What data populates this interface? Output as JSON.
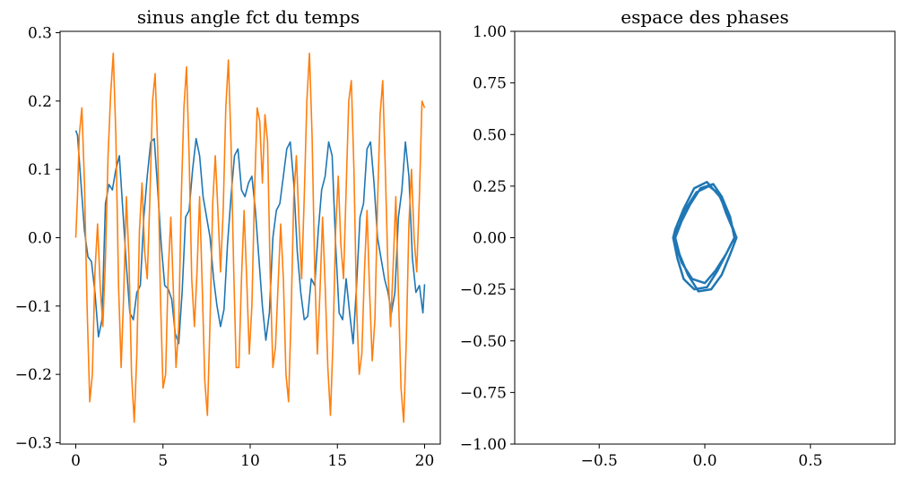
{
  "chart_data": [
    {
      "type": "line",
      "title": "sinus angle fct du temps",
      "xlabel": "",
      "ylabel": "",
      "xlim": [
        -0.9,
        20.9
      ],
      "ylim": [
        -0.302,
        0.302
      ],
      "x_ticks": [
        0,
        5,
        10,
        15,
        20
      ],
      "x_tick_labels": [
        "0",
        "5",
        "10",
        "15",
        "20"
      ],
      "y_ticks": [
        -0.3,
        -0.2,
        -0.1,
        0.0,
        0.1,
        0.2,
        0.3
      ],
      "y_tick_labels": [
        "−0.3",
        "−0.2",
        "−0.1",
        "0.0",
        "0.1",
        "0.2",
        "0.3"
      ],
      "grid": false,
      "legend": "none",
      "series": [
        {
          "color": "#1f77b4",
          "x": [
            0,
            0.1,
            0.3,
            0.5,
            0.7,
            0.9,
            1.1,
            1.3,
            1.5,
            1.7,
            1.9,
            2.1,
            2.3,
            2.5,
            2.7,
            2.9,
            3.1,
            3.3,
            3.5,
            3.7,
            3.9,
            4.1,
            4.3,
            4.5,
            4.7,
            4.9,
            5.1,
            5.3,
            5.5,
            5.7,
            5.9,
            6.1,
            6.3,
            6.5,
            6.7,
            6.9,
            7.1,
            7.3,
            7.5,
            7.7,
            7.9,
            8.1,
            8.3,
            8.5,
            8.7,
            8.9,
            9.1,
            9.3,
            9.5,
            9.7,
            9.9,
            10.1,
            10.3,
            10.5,
            10.7,
            10.9,
            11.1,
            11.3,
            11.5,
            11.7,
            11.9,
            12.1,
            12.3,
            12.5,
            12.7,
            12.9,
            13.1,
            13.3,
            13.5,
            13.7,
            13.9,
            14.1,
            14.3,
            14.5,
            14.7,
            14.9,
            15.1,
            15.3,
            15.5,
            15.7,
            15.9,
            16.1,
            16.3,
            16.5,
            16.7,
            16.9,
            17.1,
            17.3,
            17.5,
            17.7,
            17.9,
            18.1,
            18.3,
            18.5,
            18.7,
            18.9,
            19.1,
            19.3,
            19.5,
            19.7,
            19.9,
            20.0
          ],
          "y": [
            0.157,
            0.15,
            0.08,
            0.01,
            -0.028,
            -0.035,
            -0.08,
            -0.145,
            -0.12,
            0.05,
            0.078,
            0.07,
            0.1,
            0.12,
            0.04,
            -0.04,
            -0.11,
            -0.12,
            -0.08,
            -0.07,
            0.03,
            0.09,
            0.14,
            0.145,
            0.07,
            -0.01,
            -0.07,
            -0.075,
            -0.09,
            -0.14,
            -0.155,
            -0.08,
            0.03,
            0.04,
            0.1,
            0.145,
            0.12,
            0.06,
            0.03,
            0.0,
            -0.06,
            -0.1,
            -0.13,
            -0.105,
            -0.01,
            0.06,
            0.12,
            0.13,
            0.07,
            0.06,
            0.08,
            0.09,
            0.04,
            -0.03,
            -0.1,
            -0.15,
            -0.11,
            0.0,
            0.04,
            0.05,
            0.09,
            0.13,
            0.14,
            0.08,
            -0.02,
            -0.08,
            -0.12,
            -0.115,
            -0.06,
            -0.07,
            0.01,
            0.07,
            0.09,
            0.14,
            0.12,
            -0.01,
            -0.11,
            -0.12,
            -0.06,
            -0.11,
            -0.155,
            -0.07,
            0.03,
            0.05,
            0.13,
            0.14,
            0.08,
            0.0,
            -0.03,
            -0.06,
            -0.08,
            -0.11,
            -0.08,
            0.03,
            0.07,
            0.14,
            0.09,
            -0.03,
            -0.08,
            -0.07,
            -0.11,
            -0.068
          ]
        },
        {
          "color": "#ff7f0e",
          "x": [
            0,
            0.1,
            0.2,
            0.35,
            0.5,
            0.65,
            0.8,
            0.95,
            1.1,
            1.25,
            1.4,
            1.55,
            1.7,
            1.85,
            2.0,
            2.15,
            2.3,
            2.45,
            2.6,
            2.75,
            2.9,
            3.05,
            3.2,
            3.35,
            3.5,
            3.65,
            3.8,
            3.95,
            4.1,
            4.25,
            4.4,
            4.55,
            4.7,
            4.85,
            5.0,
            5.15,
            5.3,
            5.45,
            5.6,
            5.75,
            5.9,
            6.05,
            6.2,
            6.35,
            6.5,
            6.65,
            6.8,
            6.95,
            7.1,
            7.25,
            7.4,
            7.55,
            7.7,
            7.85,
            8.0,
            8.15,
            8.3,
            8.45,
            8.6,
            8.75,
            8.9,
            9.05,
            9.2,
            9.35,
            9.5,
            9.65,
            9.8,
            9.95,
            10.1,
            10.25,
            10.4,
            10.55,
            10.7,
            10.85,
            11.0,
            11.15,
            11.3,
            11.45,
            11.6,
            11.75,
            11.9,
            12.05,
            12.2,
            12.35,
            12.5,
            12.65,
            12.8,
            12.95,
            13.1,
            13.25,
            13.4,
            13.55,
            13.7,
            13.85,
            14.0,
            14.15,
            14.3,
            14.45,
            14.6,
            14.75,
            14.9,
            15.05,
            15.2,
            15.35,
            15.5,
            15.65,
            15.8,
            15.95,
            16.1,
            16.25,
            16.4,
            16.55,
            16.7,
            16.85,
            17.0,
            17.15,
            17.3,
            17.45,
            17.6,
            17.75,
            17.9,
            18.05,
            18.2,
            18.35,
            18.5,
            18.65,
            18.8,
            18.95,
            19.1,
            19.25,
            19.4,
            19.55,
            19.7,
            19.85,
            20.0
          ],
          "y": [
            0.0,
            0.06,
            0.15,
            0.19,
            0.08,
            -0.1,
            -0.24,
            -0.2,
            -0.05,
            0.02,
            -0.07,
            -0.13,
            -0.03,
            0.12,
            0.21,
            0.27,
            0.15,
            -0.07,
            -0.19,
            -0.08,
            0.06,
            -0.03,
            -0.2,
            -0.27,
            -0.17,
            0.01,
            0.08,
            -0.02,
            -0.06,
            0.06,
            0.2,
            0.24,
            0.13,
            -0.08,
            -0.22,
            -0.2,
            -0.05,
            0.03,
            -0.08,
            -0.19,
            -0.13,
            0.06,
            0.19,
            0.25,
            0.12,
            -0.06,
            -0.13,
            -0.05,
            0.06,
            -0.07,
            -0.21,
            -0.26,
            -0.12,
            0.05,
            0.12,
            0.04,
            -0.05,
            0.04,
            0.19,
            0.26,
            0.14,
            -0.04,
            -0.19,
            -0.19,
            -0.06,
            0.04,
            -0.06,
            -0.17,
            -0.1,
            0.07,
            0.19,
            0.17,
            0.08,
            0.18,
            0.14,
            -0.06,
            -0.19,
            -0.16,
            -0.07,
            0.02,
            -0.06,
            -0.2,
            -0.24,
            -0.11,
            0.06,
            0.12,
            0.02,
            -0.06,
            0.06,
            0.2,
            0.27,
            0.15,
            -0.05,
            -0.17,
            -0.08,
            0.03,
            -0.07,
            -0.19,
            -0.26,
            -0.15,
            0.01,
            0.09,
            -0.01,
            -0.06,
            0.07,
            0.2,
            0.23,
            0.1,
            -0.1,
            -0.2,
            -0.17,
            -0.05,
            0.04,
            -0.08,
            -0.18,
            -0.12,
            0.05,
            0.18,
            0.23,
            0.1,
            -0.05,
            -0.13,
            -0.04,
            0.06,
            -0.08,
            -0.22,
            -0.27,
            -0.15,
            0.02,
            0.1,
            0.0,
            -0.05,
            0.06,
            0.2,
            0.19
          ]
        }
      ]
    },
    {
      "type": "line",
      "title": "espace des phases",
      "xlabel": "",
      "ylabel": "",
      "xlim": [
        -0.9,
        0.9
      ],
      "ylim": [
        -1.0,
        1.0
      ],
      "x_ticks": [
        -0.5,
        0.0,
        0.5
      ],
      "x_tick_labels": [
        "−0.5",
        "0.0",
        "0.5"
      ],
      "y_ticks": [
        -1.0,
        -0.75,
        -0.5,
        -0.25,
        0.0,
        0.25,
        0.5,
        0.75,
        1.0
      ],
      "y_tick_labels": [
        "−1.00",
        "−0.75",
        "−0.50",
        "−0.25",
        "0.00",
        "0.25",
        "0.50",
        "0.75",
        "1.00"
      ],
      "grid": false,
      "legend": "none",
      "series": [
        {
          "color": "#1f77b4",
          "x": [
            -0.15,
            -0.11,
            -0.06,
            0.0,
            0.05,
            0.1,
            0.13,
            0.15,
            0.1,
            0.07,
            0.02,
            -0.04,
            -0.09,
            -0.12,
            -0.15,
            -0.13,
            -0.1,
            -0.05,
            0.01,
            0.06,
            0.1,
            0.14,
            0.12,
            0.08,
            0.04,
            -0.02,
            -0.07,
            -0.11,
            -0.14,
            -0.12,
            -0.08,
            -0.03,
            0.03,
            0.08,
            0.12,
            0.15,
            0.11,
            0.07,
            0.01,
            -0.05,
            -0.1,
            -0.14,
            -0.15
          ],
          "y": [
            0.0,
            -0.12,
            -0.2,
            -0.22,
            -0.16,
            -0.08,
            -0.02,
            0.0,
            0.12,
            0.21,
            0.25,
            0.22,
            0.14,
            0.06,
            0.0,
            -0.1,
            -0.2,
            -0.25,
            -0.24,
            -0.16,
            -0.08,
            0.0,
            0.1,
            0.2,
            0.26,
            0.24,
            0.16,
            0.08,
            0.0,
            -0.08,
            -0.18,
            -0.26,
            -0.25,
            -0.18,
            -0.08,
            0.0,
            0.11,
            0.2,
            0.27,
            0.24,
            0.14,
            0.04,
            0.0
          ]
        }
      ]
    }
  ]
}
